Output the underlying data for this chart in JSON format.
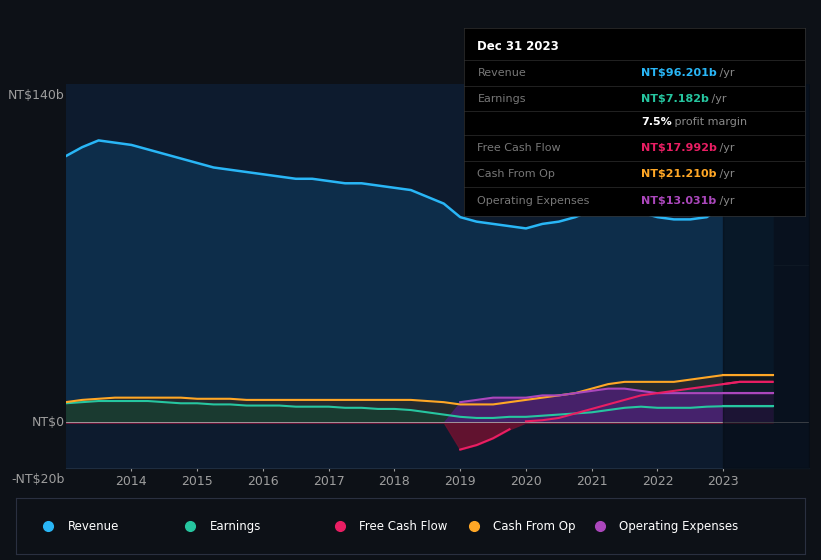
{
  "background_color": "#0d1117",
  "plot_bg_color": "#0d1b2e",
  "years": [
    2013.0,
    2013.25,
    2013.5,
    2013.75,
    2014.0,
    2014.25,
    2014.5,
    2014.75,
    2015.0,
    2015.25,
    2015.5,
    2015.75,
    2016.0,
    2016.25,
    2016.5,
    2016.75,
    2017.0,
    2017.25,
    2017.5,
    2017.75,
    2018.0,
    2018.25,
    2018.5,
    2018.75,
    2019.0,
    2019.25,
    2019.5,
    2019.75,
    2020.0,
    2020.25,
    2020.5,
    2020.75,
    2021.0,
    2021.25,
    2021.5,
    2021.75,
    2022.0,
    2022.25,
    2022.5,
    2022.75,
    2023.0,
    2023.25,
    2023.5,
    2023.75
  ],
  "revenue": [
    118,
    122,
    125,
    124,
    123,
    121,
    119,
    117,
    115,
    113,
    112,
    111,
    110,
    109,
    108,
    108,
    107,
    106,
    106,
    105,
    104,
    103,
    100,
    97,
    91,
    89,
    88,
    87,
    86,
    88,
    89,
    91,
    94,
    96,
    95,
    93,
    91,
    90,
    90,
    91,
    96,
    96,
    96,
    96
  ],
  "earnings": [
    8.5,
    9,
    9.5,
    9.5,
    9.5,
    9.5,
    9,
    8.5,
    8.5,
    8,
    8,
    7.5,
    7.5,
    7.5,
    7,
    7,
    7,
    6.5,
    6.5,
    6,
    6,
    5.5,
    4.5,
    3.5,
    2.5,
    2,
    2,
    2.5,
    2.5,
    3,
    3.5,
    4,
    4.5,
    5.5,
    6.5,
    7,
    6.5,
    6.5,
    6.5,
    7,
    7.2,
    7.2,
    7.2,
    7.2
  ],
  "free_cash_flow": [
    null,
    null,
    null,
    null,
    null,
    null,
    null,
    null,
    null,
    null,
    null,
    null,
    null,
    null,
    null,
    null,
    null,
    null,
    null,
    null,
    null,
    null,
    null,
    null,
    null,
    null,
    null,
    null,
    0.5,
    1,
    2,
    4,
    6,
    8,
    10,
    12,
    13,
    14,
    15,
    16,
    17,
    18,
    18,
    18
  ],
  "free_cash_flow_neg": [
    null,
    null,
    null,
    null,
    null,
    null,
    null,
    null,
    null,
    null,
    null,
    null,
    null,
    null,
    null,
    null,
    null,
    null,
    null,
    null,
    null,
    null,
    null,
    null,
    -12,
    -10,
    -7,
    -3,
    null,
    null,
    null,
    null,
    null,
    null,
    null,
    null,
    null,
    null,
    null,
    null,
    null,
    null,
    null,
    null
  ],
  "cash_from_op": [
    9,
    10,
    10.5,
    11,
    11,
    11,
    11,
    11,
    10.5,
    10.5,
    10.5,
    10,
    10,
    10,
    10,
    10,
    10,
    10,
    10,
    10,
    10,
    10,
    9.5,
    9,
    8,
    8,
    8,
    9,
    10,
    11,
    12,
    13,
    15,
    17,
    18,
    18,
    18,
    18,
    19,
    20,
    21,
    21,
    21,
    21
  ],
  "operating_expenses": [
    null,
    null,
    null,
    null,
    null,
    null,
    null,
    null,
    null,
    null,
    null,
    null,
    null,
    null,
    null,
    null,
    null,
    null,
    null,
    null,
    null,
    null,
    null,
    null,
    9,
    10,
    11,
    11,
    11,
    12,
    12,
    13,
    14,
    15,
    15,
    14,
    13,
    13,
    13,
    13,
    13,
    13,
    13,
    13
  ],
  "revenue_line_color": "#29b6f6",
  "revenue_fill_color": "#0d2d4a",
  "earnings_line_color": "#26c6a0",
  "earnings_fill_color": "#1a3a30",
  "fcf_neg_fill_color": "#6b1230",
  "fcf_neg_line_color": "#e91e63",
  "fcf_pos_fill_color": "#1a3a50",
  "fcf_pos_line_color": "#e91e63",
  "cash_from_op_line_color": "#ffa726",
  "op_exp_fill_color": "#4a2070",
  "op_exp_line_color": "#ab47bc",
  "right_shade_color": "#060d16",
  "grid_color": "#1e2d40",
  "text_color": "#9e9e9e",
  "ylim": [
    -20,
    150
  ],
  "xlim": [
    2013.0,
    2024.3
  ],
  "xticks": [
    2014,
    2015,
    2016,
    2017,
    2018,
    2019,
    2020,
    2021,
    2022,
    2023
  ],
  "legend": [
    {
      "label": "Revenue",
      "color": "#29b6f6"
    },
    {
      "label": "Earnings",
      "color": "#26c6a0"
    },
    {
      "label": "Free Cash Flow",
      "color": "#e91e63"
    },
    {
      "label": "Cash From Op",
      "color": "#ffa726"
    },
    {
      "label": "Operating Expenses",
      "color": "#ab47bc"
    }
  ]
}
